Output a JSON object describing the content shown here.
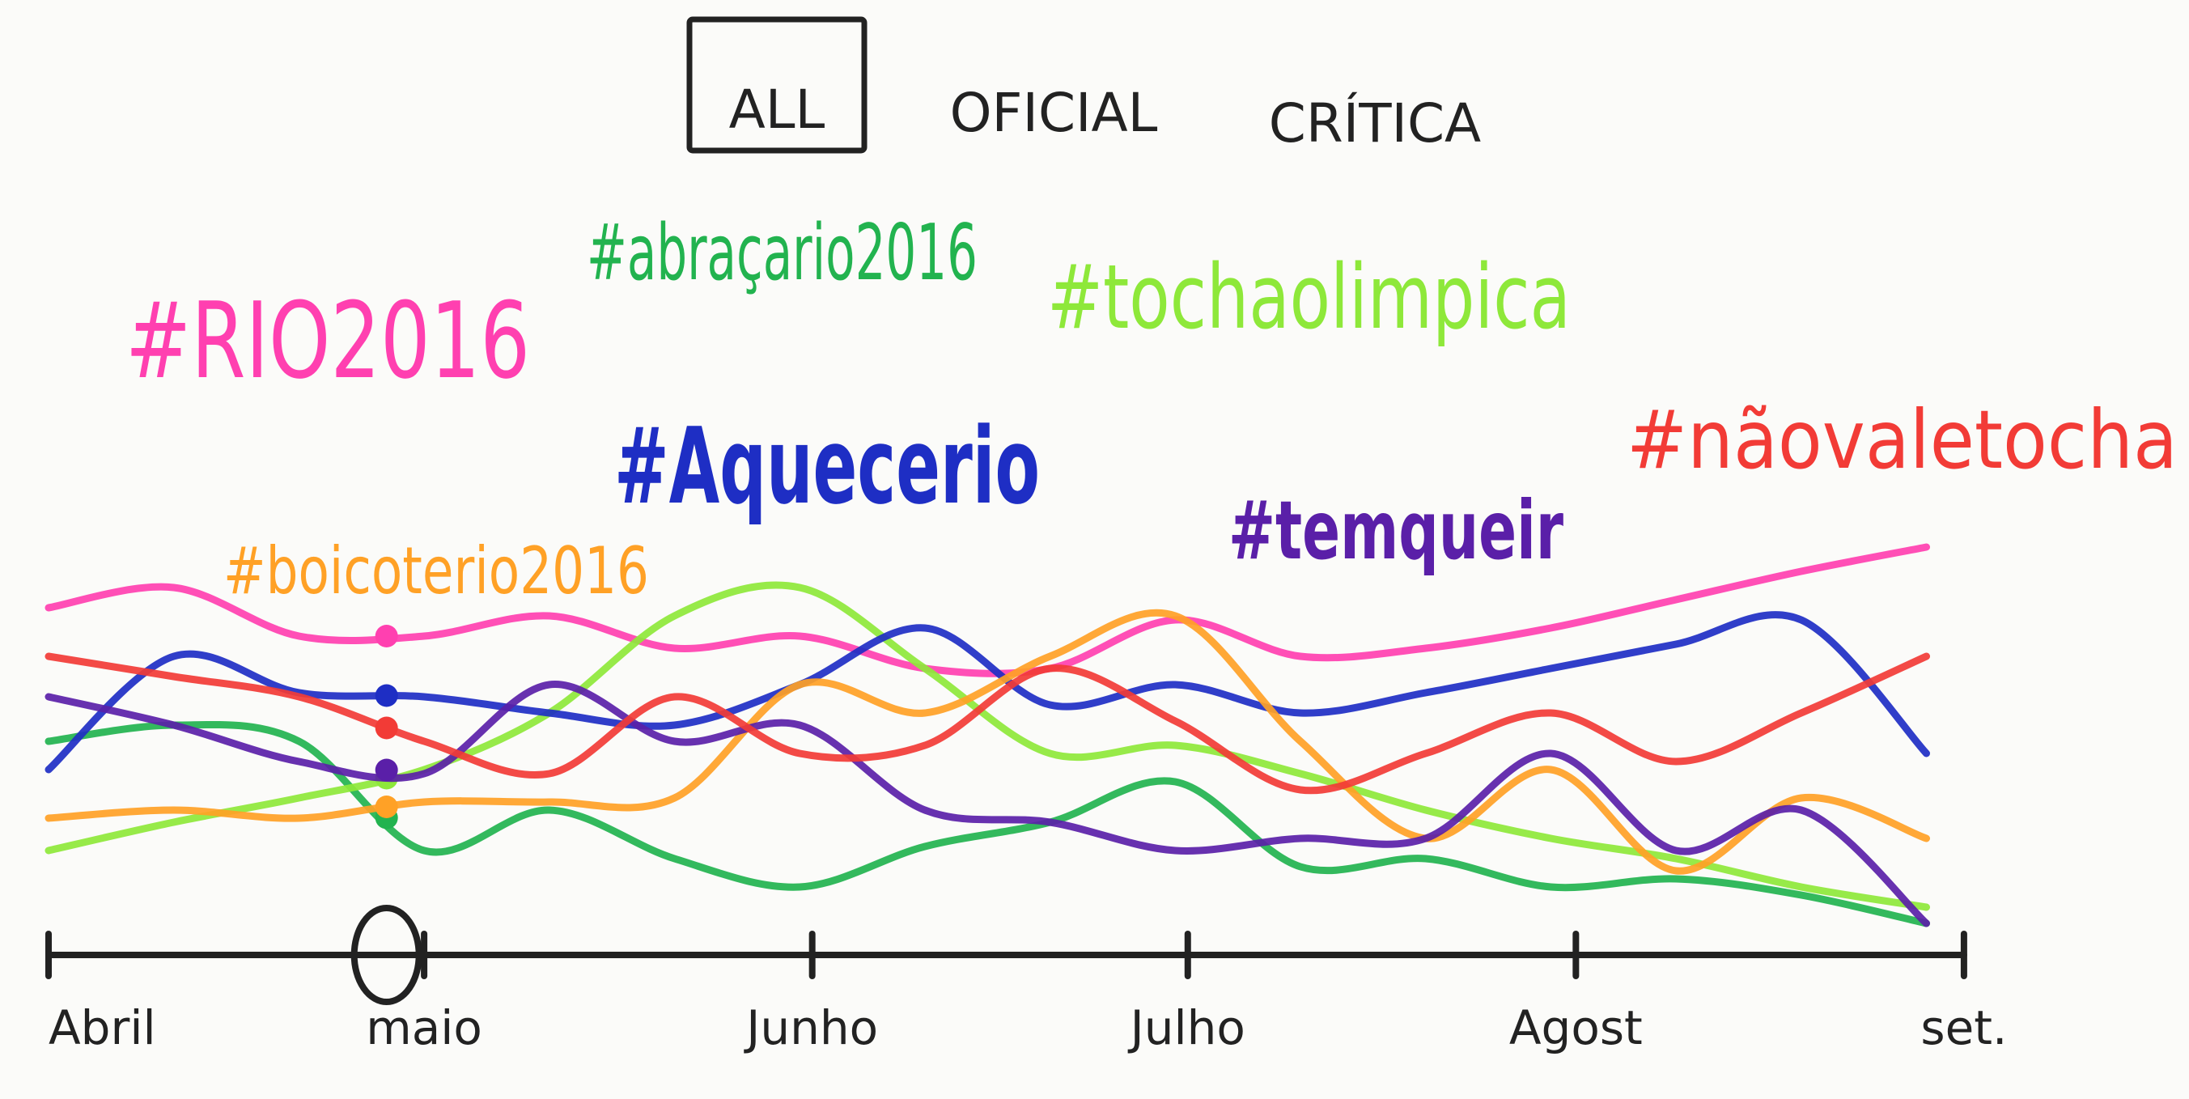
{
  "filters": {
    "options": [
      "ALL",
      "OFICIAL",
      "CRÍTICA"
    ],
    "active": 0
  },
  "chart_data": {
    "type": "line",
    "x": [
      0,
      10,
      20,
      30,
      40,
      50,
      60,
      70,
      80,
      90,
      100,
      110,
      120,
      130,
      140,
      150
    ],
    "xlim": [
      0,
      153
    ],
    "xticks": [
      {
        "value": 0,
        "label": "Abril"
      },
      {
        "value": 30,
        "label": "maio"
      },
      {
        "value": 61,
        "label": "Junho"
      },
      {
        "value": 91,
        "label": "Julho"
      },
      {
        "value": 122,
        "label": "Agost"
      },
      {
        "value": 153,
        "label": "set."
      }
    ],
    "ylim": [
      0,
      100
    ],
    "selected_x": 27,
    "series": [
      {
        "name": "#RIO2016",
        "color": "#ff40b0",
        "values": [
          81,
          86,
          74,
          74,
          79,
          71,
          74,
          66,
          66,
          78,
          69,
          71,
          76,
          83,
          90,
          96
        ]
      },
      {
        "name": "#abraçario2016",
        "color": "#22b34f",
        "values": [
          48,
          52,
          48,
          21,
          31,
          19,
          12,
          22,
          28,
          38,
          17,
          19,
          12,
          14,
          10,
          3
        ]
      },
      {
        "name": "#tochaolimpica",
        "color": "#8ee83a",
        "values": [
          21,
          28,
          34,
          41,
          55,
          79,
          86,
          66,
          45,
          47,
          40,
          31,
          24,
          19,
          12,
          7
        ]
      },
      {
        "name": "#Aquecerio",
        "color": "#1e2ec4",
        "values": [
          41,
          69,
          60,
          59,
          55,
          52,
          62,
          76,
          57,
          62,
          55,
          60,
          66,
          72,
          78,
          45
        ]
      },
      {
        "name": "#boicoterio2016",
        "color": "#ffa126",
        "values": [
          29,
          31,
          29,
          33,
          33,
          34,
          62,
          55,
          69,
          79,
          48,
          24,
          41,
          16,
          34,
          24
        ]
      },
      {
        "name": "#temqueir",
        "color": "#5a1fa8",
        "values": [
          59,
          52,
          43,
          40,
          62,
          48,
          52,
          31,
          28,
          21,
          24,
          24,
          45,
          21,
          31,
          3
        ]
      },
      {
        "name": "#nãovaletocha",
        "color": "#f23b36",
        "values": [
          69,
          64,
          59,
          48,
          40,
          59,
          45,
          47,
          66,
          53,
          36,
          45,
          55,
          43,
          55,
          69
        ]
      }
    ]
  }
}
